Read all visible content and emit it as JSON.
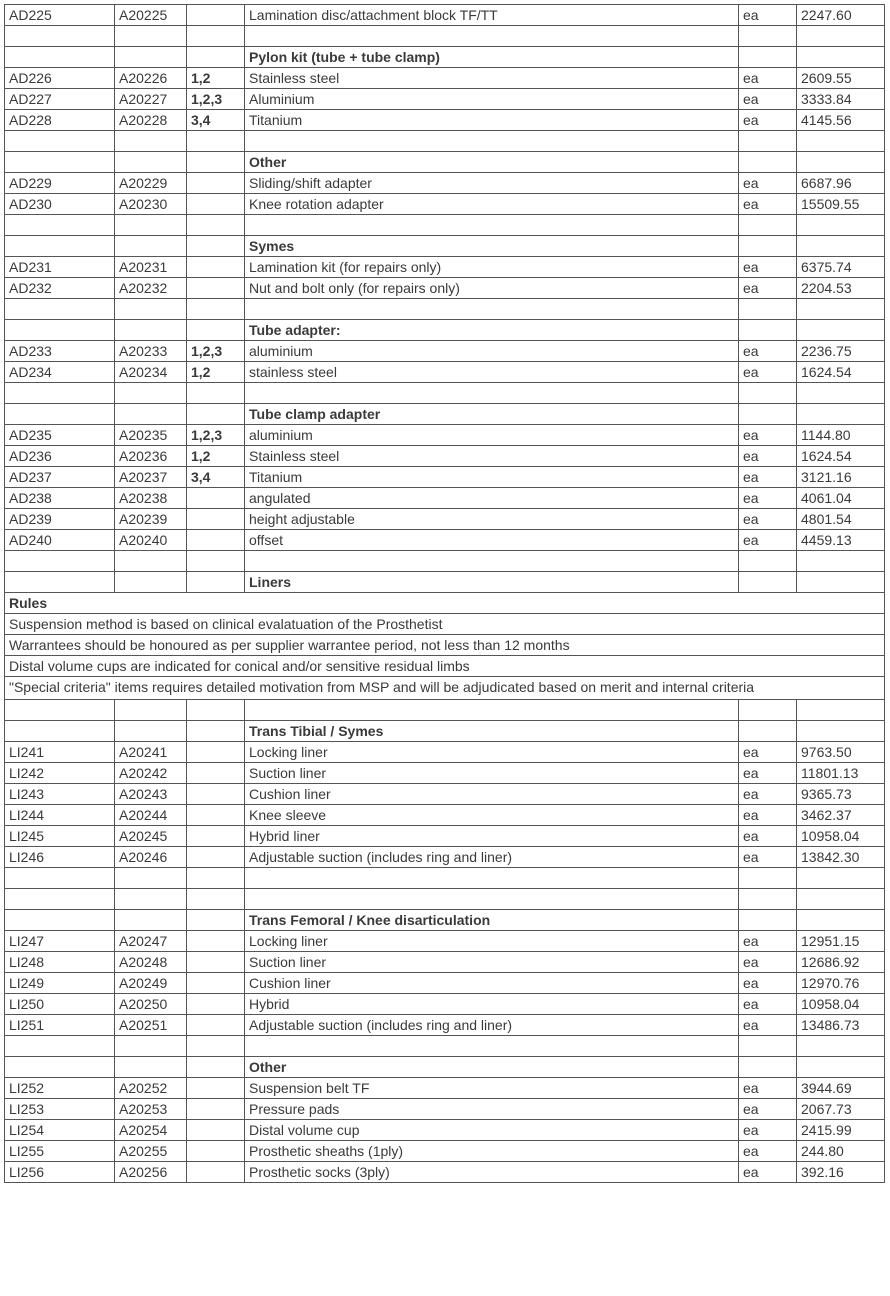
{
  "colWidths": [
    "110px",
    "72px",
    "58px",
    "494px",
    "58px",
    "88px"
  ],
  "rows": [
    {
      "cells": [
        "AD225",
        "A20225",
        "",
        "Lamination disc/attachment block TF/TT",
        "ea",
        "2247.60"
      ]
    },
    {
      "cells": [
        "",
        "",
        "",
        "",
        "",
        ""
      ]
    },
    {
      "cells": [
        "",
        "",
        "",
        "Pylon kit (tube + tube clamp)",
        "",
        ""
      ],
      "bold": [
        3
      ]
    },
    {
      "cells": [
        "AD226",
        "A20226",
        "1,2",
        "Stainless steel",
        "ea",
        "2609.55"
      ],
      "bold": [
        2
      ]
    },
    {
      "cells": [
        "AD227",
        "A20227",
        "1,2,3",
        "Aluminium",
        "ea",
        "3333.84"
      ],
      "bold": [
        2
      ]
    },
    {
      "cells": [
        "AD228",
        "A20228",
        "3,4",
        "Titanium",
        "ea",
        "4145.56"
      ],
      "bold": [
        2
      ]
    },
    {
      "cells": [
        "",
        "",
        "",
        "",
        "",
        ""
      ]
    },
    {
      "cells": [
        "",
        "",
        "",
        "Other",
        "",
        ""
      ],
      "bold": [
        3
      ]
    },
    {
      "cells": [
        "AD229",
        "A20229",
        "",
        "Sliding/shift adapter",
        "ea",
        "6687.96"
      ]
    },
    {
      "cells": [
        "AD230",
        "A20230",
        "",
        "Knee rotation adapter",
        "ea",
        "15509.55"
      ]
    },
    {
      "cells": [
        "",
        "",
        "",
        "",
        "",
        ""
      ]
    },
    {
      "cells": [
        "",
        "",
        "",
        "Symes",
        "",
        ""
      ],
      "bold": [
        3
      ]
    },
    {
      "cells": [
        "AD231",
        "A20231",
        "",
        "Lamination kit (for repairs only)",
        "ea",
        "6375.74"
      ]
    },
    {
      "cells": [
        "AD232",
        "A20232",
        "",
        "Nut and bolt only (for repairs only)",
        "ea",
        "2204.53"
      ]
    },
    {
      "cells": [
        "",
        "",
        "",
        "",
        "",
        ""
      ]
    },
    {
      "cells": [
        "",
        "",
        "",
        "Tube adapter:",
        "",
        ""
      ],
      "bold": [
        3
      ]
    },
    {
      "cells": [
        "AD233",
        "A20233",
        "1,2,3",
        "aluminium",
        "ea",
        "2236.75"
      ],
      "bold": [
        2
      ]
    },
    {
      "cells": [
        "AD234",
        "A20234",
        "1,2",
        "stainless steel",
        "ea",
        "1624.54"
      ],
      "bold": [
        2
      ]
    },
    {
      "cells": [
        "",
        "",
        "",
        "",
        "",
        ""
      ]
    },
    {
      "cells": [
        "",
        "",
        "",
        "Tube clamp adapter",
        "",
        ""
      ],
      "bold": [
        3
      ]
    },
    {
      "cells": [
        "AD235",
        "A20235",
        "1,2,3",
        "aluminium",
        "ea",
        "1144.80"
      ],
      "bold": [
        2
      ]
    },
    {
      "cells": [
        "AD236",
        "A20236",
        "1,2",
        "Stainless steel",
        "ea",
        "1624.54"
      ],
      "bold": [
        2
      ]
    },
    {
      "cells": [
        "AD237",
        "A20237",
        "3,4",
        "Titanium",
        "ea",
        "3121.16"
      ],
      "bold": [
        2
      ]
    },
    {
      "cells": [
        "AD238",
        "A20238",
        "",
        "angulated",
        "ea",
        "4061.04"
      ]
    },
    {
      "cells": [
        "AD239",
        "A20239",
        "",
        "height adjustable",
        "ea",
        "4801.54"
      ]
    },
    {
      "cells": [
        "AD240",
        "A20240",
        "",
        "offset",
        "ea",
        "4459.13"
      ]
    },
    {
      "cells": [
        "",
        "",
        "",
        "",
        "",
        ""
      ]
    },
    {
      "cells": [
        "",
        "",
        "",
        "Liners",
        "",
        ""
      ],
      "bold": [
        3
      ]
    },
    {
      "full": true,
      "text": "Rules",
      "boldFull": true
    },
    {
      "full": true,
      "text": "Suspension method is based on clinical evalatuation of the Prosthetist"
    },
    {
      "full": true,
      "text": "Warrantees should be honoured as per supplier warrantee period, not less than 12 months"
    },
    {
      "full": true,
      "text": "Distal volume cups are indicated for conical and/or sensitive residual limbs"
    },
    {
      "full": true,
      "wrap": true,
      "text": "\"Special criteria\" items requires detailed motivation from MSP and will be adjudicated based on merit and internal criteria"
    },
    {
      "cells": [
        "",
        "",
        "",
        "",
        "",
        ""
      ]
    },
    {
      "cells": [
        "",
        "",
        "",
        "Trans Tibial / Symes",
        "",
        ""
      ],
      "bold": [
        3
      ]
    },
    {
      "cells": [
        "LI241",
        "A20241",
        "",
        "Locking liner",
        "ea",
        "9763.50"
      ]
    },
    {
      "cells": [
        "LI242",
        "A20242",
        "",
        "Suction liner",
        "ea",
        "11801.13"
      ]
    },
    {
      "cells": [
        "LI243",
        "A20243",
        "",
        "Cushion liner",
        "ea",
        "9365.73"
      ]
    },
    {
      "cells": [
        "LI244",
        "A20244",
        "",
        "Knee sleeve",
        "ea",
        "3462.37"
      ]
    },
    {
      "cells": [
        "LI245",
        "A20245",
        "",
        "Hybrid liner",
        "ea",
        "10958.04"
      ]
    },
    {
      "cells": [
        "LI246",
        "A20246",
        "",
        "Adjustable suction (includes ring and liner)",
        "ea",
        "13842.30"
      ]
    },
    {
      "cells": [
        "",
        "",
        "",
        "",
        "",
        ""
      ]
    },
    {
      "cells": [
        "",
        "",
        "",
        "",
        "",
        ""
      ]
    },
    {
      "cells": [
        "",
        "",
        "",
        "Trans Femoral / Knee disarticulation",
        "",
        ""
      ],
      "bold": [
        3
      ]
    },
    {
      "cells": [
        "LI247",
        "A20247",
        "",
        "Locking liner",
        "ea",
        "12951.15"
      ]
    },
    {
      "cells": [
        "LI248",
        "A20248",
        "",
        "Suction liner",
        "ea",
        "12686.92"
      ]
    },
    {
      "cells": [
        "LI249",
        "A20249",
        "",
        "Cushion liner",
        "ea",
        "12970.76"
      ]
    },
    {
      "cells": [
        "LI250",
        "A20250",
        "",
        "Hybrid",
        "ea",
        "10958.04"
      ]
    },
    {
      "cells": [
        "LI251",
        "A20251",
        "",
        "Adjustable suction (includes ring and liner)",
        "ea",
        "13486.73"
      ]
    },
    {
      "cells": [
        "",
        "",
        "",
        "",
        "",
        ""
      ]
    },
    {
      "cells": [
        "",
        "",
        "",
        "Other",
        "",
        ""
      ],
      "bold": [
        3
      ]
    },
    {
      "cells": [
        "LI252",
        "A20252",
        "",
        "Suspension belt TF",
        "ea",
        "3944.69"
      ]
    },
    {
      "cells": [
        "LI253",
        "A20253",
        "",
        "Pressure pads",
        "ea",
        "2067.73"
      ]
    },
    {
      "cells": [
        "LI254",
        "A20254",
        "",
        "Distal volume cup",
        "ea",
        "2415.99"
      ]
    },
    {
      "cells": [
        "LI255",
        "A20255",
        "",
        "Prosthetic sheaths (1ply)",
        "ea",
        "244.80"
      ]
    },
    {
      "cells": [
        "LI256",
        "A20256",
        "",
        "Prosthetic socks (3ply)",
        "ea",
        "392.16"
      ]
    }
  ]
}
